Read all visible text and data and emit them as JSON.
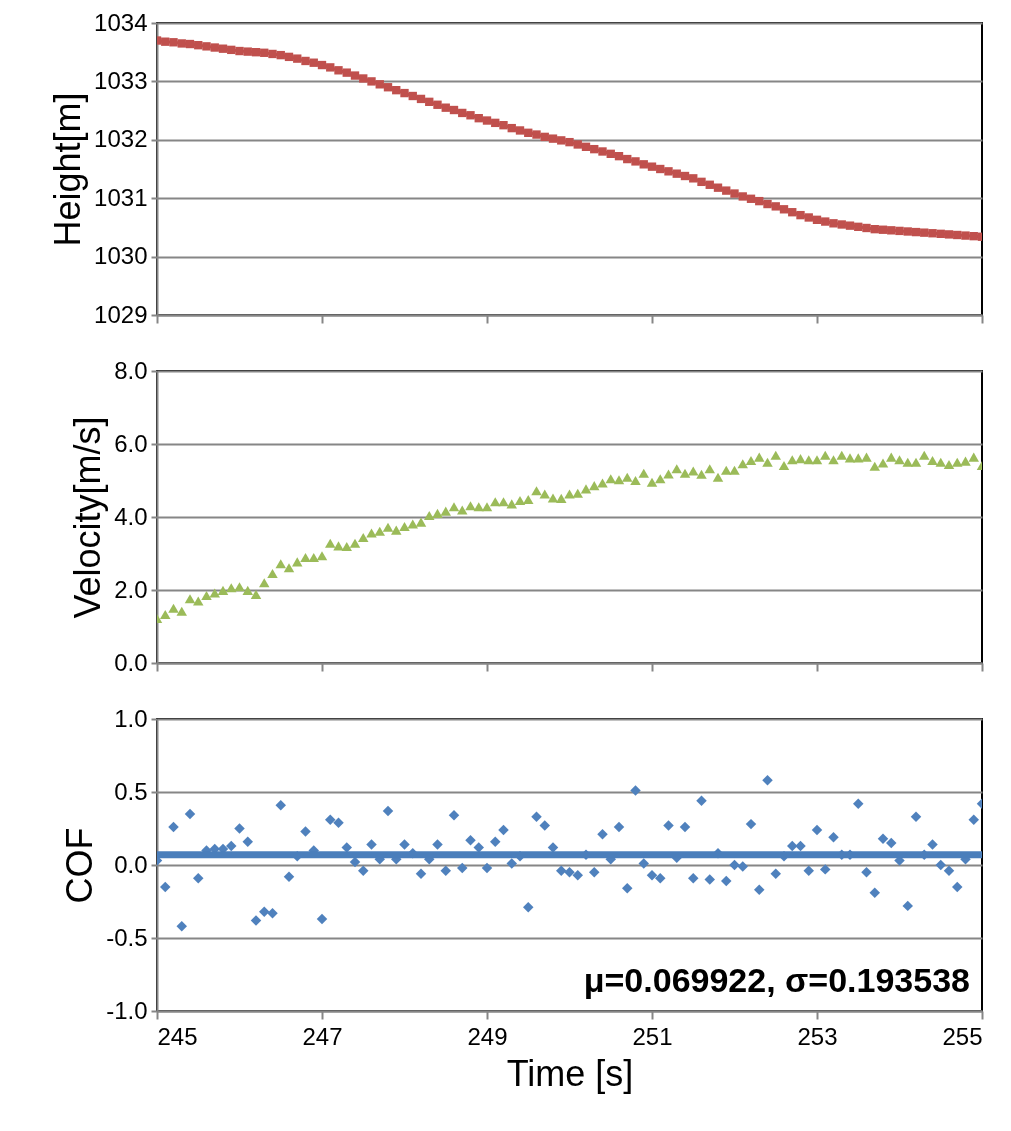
{
  "chart_data": [
    {
      "type": "line",
      "ylabel": "Height[m]",
      "marker": "square",
      "grid": "y",
      "tick_labels": "y",
      "x": [
        245.0,
        245.1,
        245.2,
        245.3,
        245.4,
        245.5,
        245.6,
        245.7,
        245.8,
        245.9,
        246.0,
        246.1,
        246.2,
        246.3,
        246.4,
        246.5,
        246.6,
        246.7,
        246.8,
        246.9,
        247.0,
        247.1,
        247.2,
        247.3,
        247.4,
        247.5,
        247.6,
        247.7,
        247.8,
        247.9,
        248.0,
        248.1,
        248.2,
        248.3,
        248.4,
        248.5,
        248.6,
        248.7,
        248.8,
        248.9,
        249.0,
        249.1,
        249.2,
        249.3,
        249.4,
        249.5,
        249.6,
        249.7,
        249.8,
        249.9,
        250.0,
        250.1,
        250.2,
        250.3,
        250.4,
        250.5,
        250.6,
        250.7,
        250.8,
        250.9,
        251.0,
        251.1,
        251.2,
        251.3,
        251.4,
        251.5,
        251.6,
        251.7,
        251.8,
        251.9,
        252.0,
        252.1,
        252.2,
        252.3,
        252.4,
        252.5,
        252.6,
        252.7,
        252.8,
        252.9,
        253.0,
        253.1,
        253.2,
        253.3,
        253.4,
        253.5,
        253.6,
        253.7,
        253.8,
        253.9,
        254.0,
        254.1,
        254.2,
        254.3,
        254.4,
        254.5,
        254.6,
        254.7,
        254.8,
        254.9,
        255.0
      ],
      "series": [
        {
          "color": "#c0504d",
          "values": [
            1033.7,
            1033.68,
            1033.67,
            1033.65,
            1033.64,
            1033.62,
            1033.6,
            1033.58,
            1033.56,
            1033.54,
            1033.52,
            1033.51,
            1033.5,
            1033.49,
            1033.47,
            1033.45,
            1033.42,
            1033.39,
            1033.35,
            1033.32,
            1033.28,
            1033.24,
            1033.19,
            1033.15,
            1033.1,
            1033.05,
            1033.0,
            1032.95,
            1032.9,
            1032.85,
            1032.8,
            1032.75,
            1032.7,
            1032.65,
            1032.6,
            1032.55,
            1032.51,
            1032.46,
            1032.42,
            1032.37,
            1032.33,
            1032.29,
            1032.25,
            1032.2,
            1032.16,
            1032.12,
            1032.09,
            1032.05,
            1032.02,
            1031.99,
            1031.96,
            1031.92,
            1031.88,
            1031.84,
            1031.8,
            1031.76,
            1031.72,
            1031.67,
            1031.63,
            1031.58,
            1031.54,
            1031.5,
            1031.46,
            1031.42,
            1031.38,
            1031.34,
            1031.28,
            1031.23,
            1031.18,
            1031.13,
            1031.08,
            1031.03,
            1030.99,
            1030.95,
            1030.9,
            1030.86,
            1030.81,
            1030.76,
            1030.71,
            1030.67,
            1030.63,
            1030.6,
            1030.57,
            1030.55,
            1030.53,
            1030.51,
            1030.49,
            1030.47,
            1030.46,
            1030.45,
            1030.44,
            1030.43,
            1030.42,
            1030.41,
            1030.4,
            1030.39,
            1030.38,
            1030.37,
            1030.36,
            1030.35,
            1030.34
          ]
        }
      ],
      "xlim": [
        245,
        255
      ],
      "xticks": [
        245,
        247,
        249,
        251,
        253,
        255
      ],
      "ylim": [
        1029,
        1034
      ],
      "yticks": [
        1029,
        1030,
        1031,
        1032,
        1033,
        1034
      ]
    },
    {
      "type": "scatter",
      "ylabel": "Velocity[m/s]",
      "marker": "triangle",
      "grid": "y",
      "tick_labels": "y",
      "x": [
        245.0,
        245.1,
        245.2,
        245.3,
        245.4,
        245.5,
        245.6,
        245.7,
        245.8,
        245.9,
        246.0,
        246.1,
        246.2,
        246.3,
        246.4,
        246.5,
        246.6,
        246.7,
        246.8,
        246.9,
        247.0,
        247.1,
        247.2,
        247.3,
        247.4,
        247.5,
        247.6,
        247.7,
        247.8,
        247.9,
        248.0,
        248.1,
        248.2,
        248.3,
        248.4,
        248.5,
        248.6,
        248.7,
        248.8,
        248.9,
        249.0,
        249.1,
        249.2,
        249.3,
        249.4,
        249.5,
        249.6,
        249.7,
        249.8,
        249.9,
        250.0,
        250.1,
        250.2,
        250.3,
        250.4,
        250.5,
        250.6,
        250.7,
        250.8,
        250.9,
        251.0,
        251.1,
        251.2,
        251.3,
        251.4,
        251.5,
        251.6,
        251.7,
        251.8,
        251.9,
        252.0,
        252.1,
        252.2,
        252.3,
        252.4,
        252.5,
        252.6,
        252.7,
        252.8,
        252.9,
        253.0,
        253.1,
        253.2,
        253.3,
        253.4,
        253.5,
        253.6,
        253.7,
        253.8,
        253.9,
        254.0,
        254.1,
        254.2,
        254.3,
        254.4,
        254.5,
        254.6,
        254.7,
        254.8,
        254.9,
        255.0
      ],
      "series": [
        {
          "color": "#9bbb59",
          "values": [
            1.22,
            1.33,
            1.5,
            1.42,
            1.76,
            1.7,
            1.85,
            1.92,
            1.99,
            2.06,
            2.09,
            1.99,
            1.88,
            2.2,
            2.45,
            2.72,
            2.61,
            2.77,
            2.89,
            2.89,
            2.94,
            3.28,
            3.21,
            3.19,
            3.28,
            3.44,
            3.56,
            3.61,
            3.72,
            3.64,
            3.74,
            3.81,
            3.86,
            4.04,
            4.1,
            4.16,
            4.28,
            4.19,
            4.31,
            4.28,
            4.28,
            4.42,
            4.42,
            4.36,
            4.45,
            4.48,
            4.72,
            4.63,
            4.52,
            4.51,
            4.63,
            4.65,
            4.77,
            4.86,
            4.93,
            5.05,
            5.02,
            5.09,
            5.0,
            5.2,
            4.95,
            5.05,
            5.18,
            5.32,
            5.2,
            5.26,
            5.17,
            5.32,
            5.09,
            5.28,
            5.28,
            5.46,
            5.55,
            5.64,
            5.5,
            5.69,
            5.41,
            5.57,
            5.6,
            5.57,
            5.57,
            5.69,
            5.57,
            5.69,
            5.62,
            5.62,
            5.64,
            5.39,
            5.48,
            5.64,
            5.57,
            5.5,
            5.5,
            5.69,
            5.55,
            5.5,
            5.44,
            5.5,
            5.53,
            5.64,
            5.41
          ]
        }
      ],
      "xlim": [
        245,
        255
      ],
      "xticks": [
        245,
        247,
        249,
        251,
        253,
        255
      ],
      "ylim": [
        0,
        8
      ],
      "yticks": [
        {
          "value": 0,
          "label": "0.0"
        },
        {
          "value": 2,
          "label": "2.0"
        },
        {
          "value": 4,
          "label": "4.0"
        },
        {
          "value": 6,
          "label": "6.0"
        },
        {
          "value": 8,
          "label": "8.0"
        }
      ]
    },
    {
      "type": "scatter",
      "ylabel": "COF",
      "xlabel": "Time [s]",
      "marker": "diamond",
      "grid": "y",
      "x": [
        245.0,
        245.1,
        245.2,
        245.3,
        245.4,
        245.5,
        245.6,
        245.7,
        245.8,
        245.9,
        246.0,
        246.1,
        246.2,
        246.3,
        246.4,
        246.5,
        246.6,
        246.7,
        246.8,
        246.9,
        247.0,
        247.1,
        247.2,
        247.3,
        247.4,
        247.5,
        247.6,
        247.7,
        247.8,
        247.9,
        248.0,
        248.1,
        248.2,
        248.3,
        248.4,
        248.5,
        248.6,
        248.7,
        248.8,
        248.9,
        249.0,
        249.1,
        249.2,
        249.3,
        249.4,
        249.5,
        249.6,
        249.7,
        249.8,
        249.9,
        250.0,
        250.1,
        250.2,
        250.3,
        250.4,
        250.5,
        250.6,
        250.7,
        250.8,
        250.9,
        251.0,
        251.1,
        251.2,
        251.3,
        251.4,
        251.5,
        251.6,
        251.7,
        251.8,
        251.9,
        252.0,
        252.1,
        252.2,
        252.3,
        252.4,
        252.5,
        252.6,
        252.7,
        252.8,
        252.9,
        253.0,
        253.1,
        253.2,
        253.3,
        253.4,
        253.5,
        253.6,
        253.7,
        253.8,
        253.9,
        254.0,
        254.1,
        254.2,
        254.3,
        254.4,
        254.5,
        254.6,
        254.7,
        254.8,
        254.9,
        255.0
      ],
      "series": [
        {
          "color": "#4f81bd",
          "values": [
            0.03,
            -0.15,
            0.26,
            -0.42,
            0.35,
            -0.09,
            0.1,
            0.11,
            0.11,
            0.13,
            0.25,
            0.16,
            -0.38,
            -0.32,
            -0.33,
            0.41,
            -0.08,
            0.06,
            0.23,
            0.1,
            -0.37,
            0.31,
            0.29,
            0.12,
            0.02,
            -0.04,
            0.14,
            0.04,
            0.37,
            0.04,
            0.14,
            0.08,
            -0.06,
            0.04,
            0.14,
            -0.04,
            0.34,
            -0.02,
            0.17,
            0.12,
            -0.02,
            0.16,
            0.24,
            0.01,
            0.06,
            -0.29,
            0.33,
            0.27,
            0.12,
            -0.04,
            -0.05,
            -0.07,
            0.07,
            -0.05,
            0.21,
            0.04,
            0.26,
            -0.16,
            0.51,
            0.01,
            -0.07,
            -0.09,
            0.27,
            0.05,
            0.26,
            -0.09,
            0.44,
            -0.1,
            0.08,
            -0.11,
            0.0,
            -0.01,
            0.28,
            -0.17,
            0.58,
            -0.06,
            0.06,
            0.13,
            0.13,
            -0.04,
            0.24,
            -0.03,
            0.19,
            0.07,
            0.07,
            0.42,
            -0.05,
            -0.19,
            0.18,
            0.15,
            0.03,
            -0.28,
            0.33,
            0.07,
            0.14,
            0.0,
            -0.04,
            -0.15,
            0.04,
            0.31,
            0.42
          ]
        }
      ],
      "ref_lines": [
        {
          "axis": "y",
          "value": 0.069922,
          "color": "#4a7ebb"
        }
      ],
      "annotations": [
        "μ=0.069922, σ=0.193538"
      ],
      "xlim": [
        245,
        255
      ],
      "xticks": [
        245,
        247,
        249,
        251,
        253,
        255
      ],
      "ylim": [
        -1,
        1
      ],
      "yticks": [
        {
          "value": -1,
          "label": "-1.0"
        },
        {
          "value": -0.5,
          "label": "-0.5"
        },
        {
          "value": 0,
          "label": "0.0"
        },
        {
          "value": 0.5,
          "label": "0.5"
        },
        {
          "value": 1,
          "label": "1.0"
        }
      ]
    }
  ]
}
